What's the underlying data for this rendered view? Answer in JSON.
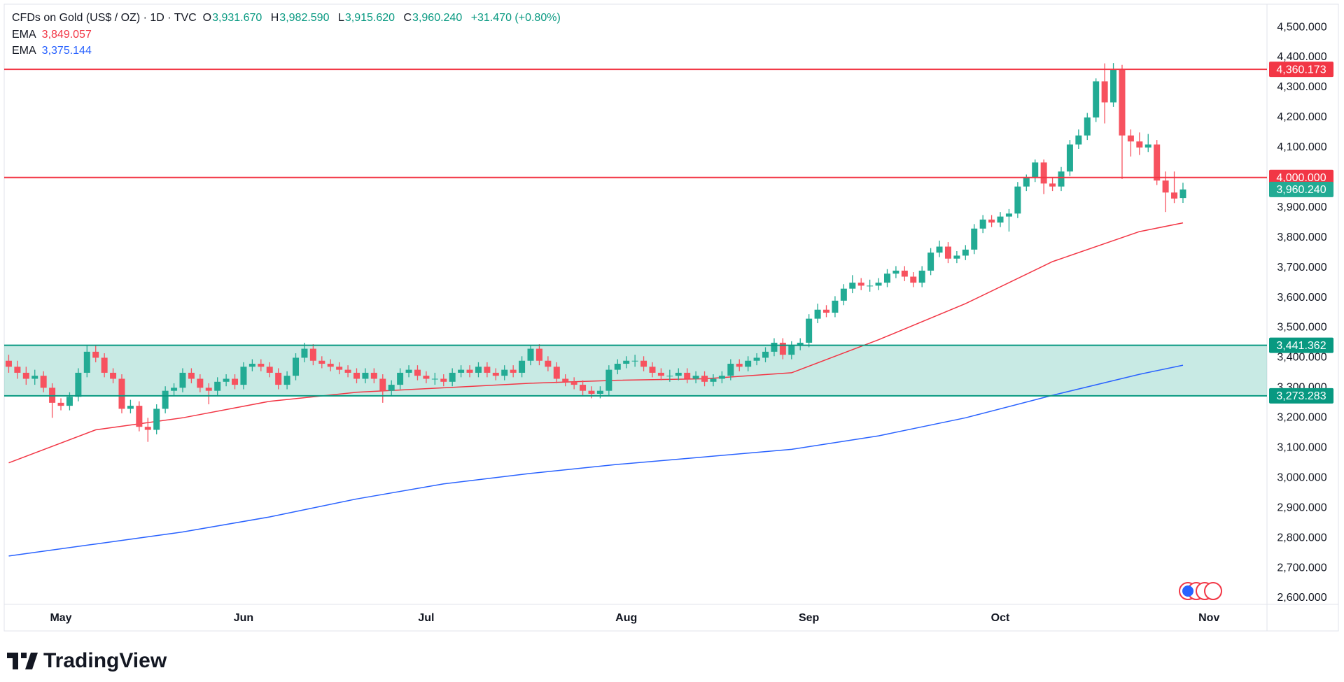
{
  "header": {
    "symbol": "CFDs on Gold (US$ / OZ) · 1D · TVC",
    "o_label": "O",
    "o": "3,931.670",
    "h_label": "H",
    "h": "3,982.590",
    "l_label": "L",
    "l": "3,915.620",
    "c_label": "C",
    "c": "3,960.240",
    "change": "+31.470 (+0.80%)"
  },
  "footer": {
    "brand": "TradingView"
  },
  "chart_data": {
    "type": "candlestick",
    "up_color": "#22ab94",
    "down_color": "#f7525f",
    "xlim": [
      -0.52,
      144.66
    ],
    "ylim": [
      2579,
      4577
    ],
    "xticks": [
      {
        "value": 6,
        "label": "May"
      },
      {
        "value": 27,
        "label": "Jun"
      },
      {
        "value": 48,
        "label": "Jul"
      },
      {
        "value": 71,
        "label": "Aug"
      },
      {
        "value": 92,
        "label": "Sep"
      },
      {
        "value": 114,
        "label": "Oct"
      },
      {
        "value": 138,
        "label": "Nov"
      }
    ],
    "yticks": [
      {
        "value": 2600,
        "label": "2,600.000"
      },
      {
        "value": 2700,
        "label": "2,700.000"
      },
      {
        "value": 2800,
        "label": "2,800.000"
      },
      {
        "value": 2900,
        "label": "2,900.000"
      },
      {
        "value": 3000,
        "label": "3,000.000"
      },
      {
        "value": 3100,
        "label": "3,100.000"
      },
      {
        "value": 3200,
        "label": "3,200.000"
      },
      {
        "value": 3300,
        "label": "3,300.000"
      },
      {
        "value": 3400,
        "label": "3,400.000"
      },
      {
        "value": 3500,
        "label": "3,500.000"
      },
      {
        "value": 3600,
        "label": "3,600.000"
      },
      {
        "value": 3700,
        "label": "3,700.000"
      },
      {
        "value": 3800,
        "label": "3,800.000"
      },
      {
        "value": 3900,
        "label": "3,900.000"
      },
      {
        "value": 4000,
        "label": "4,000.000"
      },
      {
        "value": 4100,
        "label": "4,100.000"
      },
      {
        "value": 4200,
        "label": "4,200.000"
      },
      {
        "value": 4300,
        "label": "4,300.000"
      },
      {
        "value": 4400,
        "label": "4,400.000"
      },
      {
        "value": 4500,
        "label": "4,500.000"
      }
    ],
    "candles": [
      [
        3390,
        3410,
        3350,
        3370
      ],
      [
        3370,
        3390,
        3330,
        3350
      ],
      [
        3350,
        3370,
        3310,
        3330
      ],
      [
        3330,
        3360,
        3310,
        3340
      ],
      [
        3340,
        3355,
        3285,
        3300
      ],
      [
        3300,
        3315,
        3200,
        3250
      ],
      [
        3250,
        3265,
        3225,
        3240
      ],
      [
        3240,
        3285,
        3225,
        3270
      ],
      [
        3270,
        3365,
        3255,
        3350
      ],
      [
        3350,
        3440,
        3335,
        3420
      ],
      [
        3420,
        3440,
        3385,
        3400
      ],
      [
        3400,
        3415,
        3335,
        3350
      ],
      [
        3350,
        3365,
        3315,
        3330
      ],
      [
        3330,
        3345,
        3215,
        3230
      ],
      [
        3230,
        3260,
        3215,
        3240
      ],
      [
        3240,
        3255,
        3155,
        3170
      ],
      [
        3170,
        3200,
        3120,
        3160
      ],
      [
        3160,
        3245,
        3145,
        3230
      ],
      [
        3230,
        3305,
        3215,
        3290
      ],
      [
        3290,
        3315,
        3275,
        3300
      ],
      [
        3300,
        3365,
        3285,
        3350
      ],
      [
        3350,
        3365,
        3315,
        3330
      ],
      [
        3330,
        3345,
        3285,
        3300
      ],
      [
        3300,
        3315,
        3245,
        3290
      ],
      [
        3290,
        3335,
        3275,
        3320
      ],
      [
        3320,
        3345,
        3305,
        3330
      ],
      [
        3330,
        3345,
        3295,
        3310
      ],
      [
        3310,
        3385,
        3295,
        3370
      ],
      [
        3370,
        3395,
        3355,
        3380
      ],
      [
        3380,
        3395,
        3355,
        3370
      ],
      [
        3370,
        3385,
        3335,
        3350
      ],
      [
        3350,
        3365,
        3295,
        3310
      ],
      [
        3310,
        3355,
        3295,
        3340
      ],
      [
        3340,
        3415,
        3325,
        3400
      ],
      [
        3400,
        3450,
        3385,
        3430
      ],
      [
        3430,
        3445,
        3375,
        3390
      ],
      [
        3390,
        3405,
        3365,
        3380
      ],
      [
        3380,
        3395,
        3355,
        3370
      ],
      [
        3370,
        3385,
        3345,
        3360
      ],
      [
        3360,
        3375,
        3335,
        3350
      ],
      [
        3350,
        3365,
        3315,
        3330
      ],
      [
        3330,
        3365,
        3315,
        3350
      ],
      [
        3350,
        3365,
        3315,
        3330
      ],
      [
        3330,
        3345,
        3250,
        3290
      ],
      [
        3290,
        3325,
        3275,
        3310
      ],
      [
        3310,
        3365,
        3295,
        3350
      ],
      [
        3350,
        3375,
        3335,
        3360
      ],
      [
        3360,
        3375,
        3325,
        3340
      ],
      [
        3340,
        3355,
        3315,
        3330
      ],
      [
        3330,
        3350,
        3310,
        3330
      ],
      [
        3330,
        3345,
        3305,
        3320
      ],
      [
        3320,
        3365,
        3305,
        3350
      ],
      [
        3350,
        3375,
        3335,
        3360
      ],
      [
        3360,
        3375,
        3335,
        3350
      ],
      [
        3350,
        3385,
        3335,
        3370
      ],
      [
        3370,
        3385,
        3335,
        3350
      ],
      [
        3350,
        3365,
        3325,
        3340
      ],
      [
        3340,
        3375,
        3325,
        3360
      ],
      [
        3360,
        3375,
        3335,
        3350
      ],
      [
        3350,
        3405,
        3335,
        3390
      ],
      [
        3390,
        3440,
        3375,
        3430
      ],
      [
        3430,
        3445,
        3375,
        3390
      ],
      [
        3390,
        3405,
        3355,
        3370
      ],
      [
        3370,
        3385,
        3315,
        3330
      ],
      [
        3330,
        3345,
        3305,
        3320
      ],
      [
        3320,
        3335,
        3295,
        3310
      ],
      [
        3310,
        3325,
        3275,
        3290
      ],
      [
        3290,
        3305,
        3265,
        3280
      ],
      [
        3280,
        3305,
        3265,
        3290
      ],
      [
        3290,
        3375,
        3275,
        3360
      ],
      [
        3360,
        3395,
        3345,
        3380
      ],
      [
        3380,
        3405,
        3365,
        3390
      ],
      [
        3390,
        3410,
        3370,
        3390
      ],
      [
        3390,
        3405,
        3355,
        3370
      ],
      [
        3370,
        3385,
        3335,
        3350
      ],
      [
        3350,
        3365,
        3325,
        3340
      ],
      [
        3340,
        3360,
        3320,
        3340
      ],
      [
        3340,
        3365,
        3325,
        3350
      ],
      [
        3350,
        3365,
        3315,
        3330
      ],
      [
        3330,
        3355,
        3315,
        3340
      ],
      [
        3340,
        3355,
        3305,
        3320
      ],
      [
        3320,
        3345,
        3305,
        3330
      ],
      [
        3330,
        3355,
        3315,
        3340
      ],
      [
        3340,
        3395,
        3325,
        3380
      ],
      [
        3380,
        3395,
        3355,
        3370
      ],
      [
        3370,
        3405,
        3355,
        3390
      ],
      [
        3390,
        3415,
        3375,
        3400
      ],
      [
        3400,
        3435,
        3385,
        3420
      ],
      [
        3420,
        3465,
        3405,
        3450
      ],
      [
        3450,
        3465,
        3395,
        3410
      ],
      [
        3410,
        3455,
        3395,
        3440
      ],
      [
        3440,
        3465,
        3425,
        3450
      ],
      [
        3450,
        3545,
        3435,
        3530
      ],
      [
        3530,
        3580,
        3515,
        3560
      ],
      [
        3560,
        3575,
        3535,
        3550
      ],
      [
        3550,
        3605,
        3535,
        3590
      ],
      [
        3590,
        3645,
        3575,
        3630
      ],
      [
        3630,
        3675,
        3615,
        3650
      ],
      [
        3650,
        3665,
        3625,
        3640
      ],
      [
        3640,
        3660,
        3620,
        3640
      ],
      [
        3640,
        3665,
        3625,
        3650
      ],
      [
        3650,
        3695,
        3635,
        3680
      ],
      [
        3680,
        3705,
        3665,
        3690
      ],
      [
        3690,
        3705,
        3655,
        3670
      ],
      [
        3670,
        3685,
        3635,
        3650
      ],
      [
        3650,
        3705,
        3635,
        3690
      ],
      [
        3690,
        3765,
        3675,
        3750
      ],
      [
        3750,
        3790,
        3735,
        3770
      ],
      [
        3770,
        3785,
        3715,
        3730
      ],
      [
        3730,
        3755,
        3715,
        3740
      ],
      [
        3740,
        3775,
        3725,
        3760
      ],
      [
        3760,
        3845,
        3745,
        3830
      ],
      [
        3830,
        3875,
        3815,
        3860
      ],
      [
        3860,
        3875,
        3835,
        3850
      ],
      [
        3850,
        3885,
        3835,
        3870
      ],
      [
        3870,
        3895,
        3820,
        3880
      ],
      [
        3880,
        3985,
        3865,
        3970
      ],
      [
        3970,
        4010,
        3955,
        4000
      ],
      [
        4000,
        4060,
        3985,
        4050
      ],
      [
        4050,
        4060,
        3945,
        3980
      ],
      [
        3980,
        4000,
        3955,
        3970
      ],
      [
        3970,
        4035,
        3955,
        4020
      ],
      [
        4020,
        4125,
        4005,
        4110
      ],
      [
        4110,
        4160,
        4095,
        4140
      ],
      [
        4140,
        4215,
        4125,
        4200
      ],
      [
        4200,
        4330,
        4185,
        4320
      ],
      [
        4320,
        4380,
        4180,
        4250
      ],
      [
        4250,
        4381,
        4235,
        4360
      ],
      [
        4360,
        4375,
        3995,
        4140
      ],
      [
        4140,
        4160,
        4070,
        4120
      ],
      [
        4120,
        4150,
        4075,
        4100
      ],
      [
        4100,
        4145,
        4085,
        4110
      ],
      [
        4110,
        4125,
        3975,
        3990
      ],
      [
        3990,
        4020,
        3885,
        3950
      ],
      [
        3950,
        4020,
        3915,
        3930
      ],
      [
        3931.67,
        3982.59,
        3915.62,
        3960.24
      ]
    ],
    "last_price_label": "3,960.240",
    "series": [
      {
        "name": "EMA",
        "value_label": "3,849.057",
        "color": "#f23645",
        "x": [
          0,
          10,
          20,
          30,
          40,
          50,
          60,
          70,
          80,
          90,
          100,
          110,
          120,
          130,
          135
        ],
        "values": [
          3050,
          3160,
          3200,
          3255,
          3285,
          3300,
          3315,
          3325,
          3330,
          3350,
          3460,
          3580,
          3720,
          3820,
          3849.057
        ]
      },
      {
        "name": "EMA",
        "value_label": "3,375.144",
        "color": "#2962ff",
        "x": [
          0,
          10,
          20,
          30,
          40,
          50,
          60,
          70,
          80,
          90,
          100,
          110,
          120,
          130,
          135
        ],
        "values": [
          2740,
          2780,
          2820,
          2870,
          2930,
          2980,
          3015,
          3045,
          3070,
          3095,
          3140,
          3200,
          3275,
          3345,
          3375.144
        ]
      }
    ],
    "levels": [
      {
        "value": 4360.173,
        "label": "4,360.173",
        "color": "#f23645"
      },
      {
        "value": 4000,
        "label": "4,000.000",
        "color": "#f23645"
      },
      {
        "value": 3441.362,
        "label": "3,441.362",
        "color": "#089981"
      },
      {
        "value": 3273.283,
        "label": "3,273.283",
        "color": "#089981"
      }
    ],
    "zone_color": "rgba(34,171,148,0.25)"
  }
}
